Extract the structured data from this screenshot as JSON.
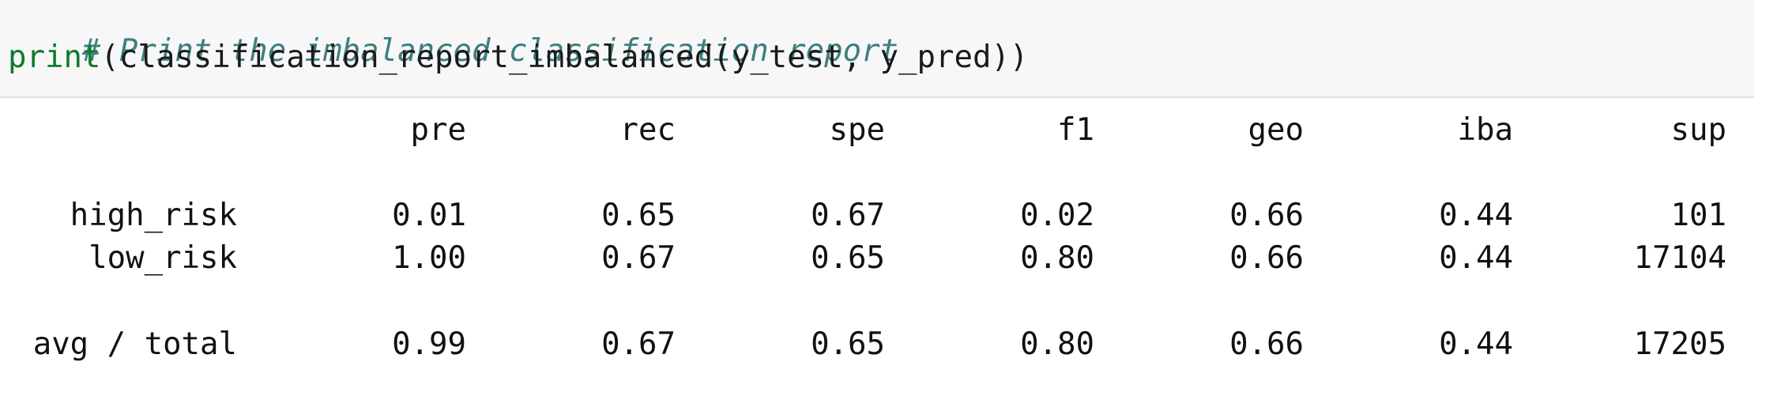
{
  "code": {
    "comment": "# Print the imbalanced classification report",
    "fn_print": "print",
    "call_rest": "(classification_report_imbalanced(y_test, y_pred))"
  },
  "report": {
    "columns": [
      "pre",
      "rec",
      "spe",
      "f1",
      "geo",
      "iba",
      "sup"
    ],
    "rows": [
      {
        "label": "high_risk",
        "values": [
          "0.01",
          "0.65",
          "0.67",
          "0.02",
          "0.66",
          "0.44",
          "101"
        ]
      },
      {
        "label": "low_risk",
        "values": [
          "1.00",
          "0.67",
          "0.65",
          "0.80",
          "0.66",
          "0.44",
          "17104"
        ]
      },
      {
        "label": "avg / total",
        "values": [
          "0.99",
          "0.67",
          "0.65",
          "0.80",
          "0.66",
          "0.44",
          "17205"
        ]
      }
    ]
  }
}
